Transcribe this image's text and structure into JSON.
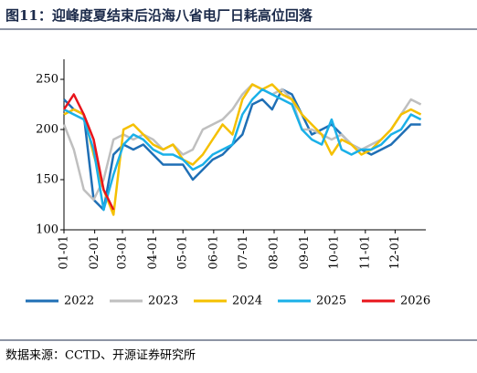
{
  "chart_data": {
    "type": "line",
    "title": "图11：迎峰度夏结束后沿海八省电厂日耗高位回落",
    "source": "数据来源：CCTD、开源证券研究所",
    "x": [
      0,
      10,
      20,
      30,
      40,
      50,
      60,
      70,
      80,
      90,
      100,
      110,
      120,
      130,
      140,
      150,
      160,
      170,
      180,
      190,
      200,
      210,
      220,
      230,
      240,
      250,
      260,
      270,
      280,
      290,
      300,
      310,
      320,
      330,
      340,
      350,
      360
    ],
    "xlim": [
      0,
      365
    ],
    "xticks": [
      {
        "value": 0,
        "label": "01-01"
      },
      {
        "value": 31,
        "label": "02-01"
      },
      {
        "value": 59,
        "label": "03-01"
      },
      {
        "value": 90,
        "label": "04-01"
      },
      {
        "value": 120,
        "label": "05-01"
      },
      {
        "value": 151,
        "label": "06-01"
      },
      {
        "value": 181,
        "label": "07-01"
      },
      {
        "value": 212,
        "label": "08-01"
      },
      {
        "value": 243,
        "label": "09-01"
      },
      {
        "value": 273,
        "label": "10-01"
      },
      {
        "value": 304,
        "label": "11-01"
      },
      {
        "value": 334,
        "label": "12-01"
      }
    ],
    "ylim": [
      100,
      270
    ],
    "yticks": [
      100,
      150,
      200,
      250
    ],
    "legend": "bottom",
    "series": [
      {
        "name": "2022",
        "color": "#1f6fb5",
        "values": [
          230,
          220,
          215,
          130,
          120,
          175,
          185,
          180,
          185,
          175,
          165,
          165,
          165,
          150,
          160,
          170,
          175,
          185,
          195,
          225,
          230,
          220,
          240,
          235,
          215,
          195,
          200,
          205,
          195,
          185,
          180,
          175,
          180,
          185,
          195,
          205,
          205
        ]
      },
      {
        "name": "2023",
        "color": "#bfbfbf",
        "values": [
          205,
          180,
          140,
          130,
          150,
          190,
          195,
          190,
          195,
          190,
          180,
          185,
          175,
          180,
          200,
          205,
          210,
          220,
          235,
          245,
          240,
          235,
          240,
          230,
          200,
          200,
          195,
          190,
          195,
          185,
          180,
          185,
          190,
          200,
          215,
          230,
          225
        ]
      },
      {
        "name": "2024",
        "color": "#f5c000",
        "values": [
          215,
          220,
          215,
          175,
          140,
          115,
          200,
          205,
          195,
          185,
          180,
          185,
          170,
          165,
          175,
          190,
          205,
          195,
          230,
          245,
          240,
          245,
          235,
          230,
          215,
          205,
          195,
          175,
          190,
          185,
          175,
          180,
          190,
          200,
          215,
          220,
          215
        ]
      },
      {
        "name": "2025",
        "color": "#1ab0e8",
        "values": [
          220,
          215,
          210,
          180,
          120,
          155,
          185,
          195,
          190,
          180,
          175,
          175,
          170,
          160,
          165,
          175,
          180,
          185,
          215,
          230,
          240,
          235,
          230,
          225,
          200,
          190,
          185,
          210,
          180,
          175,
          180,
          180,
          185,
          195,
          200,
          215,
          210
        ]
      },
      {
        "name": "2026",
        "color": "#e8141b",
        "values": [
          220,
          235,
          215,
          190,
          140,
          120,
          null,
          null,
          null,
          null,
          null,
          null,
          null,
          null,
          null,
          null,
          null,
          null,
          null,
          null,
          null,
          null,
          null,
          null,
          null,
          null,
          null,
          null,
          null,
          null,
          null,
          null,
          null,
          null,
          null,
          null,
          null
        ]
      }
    ]
  }
}
